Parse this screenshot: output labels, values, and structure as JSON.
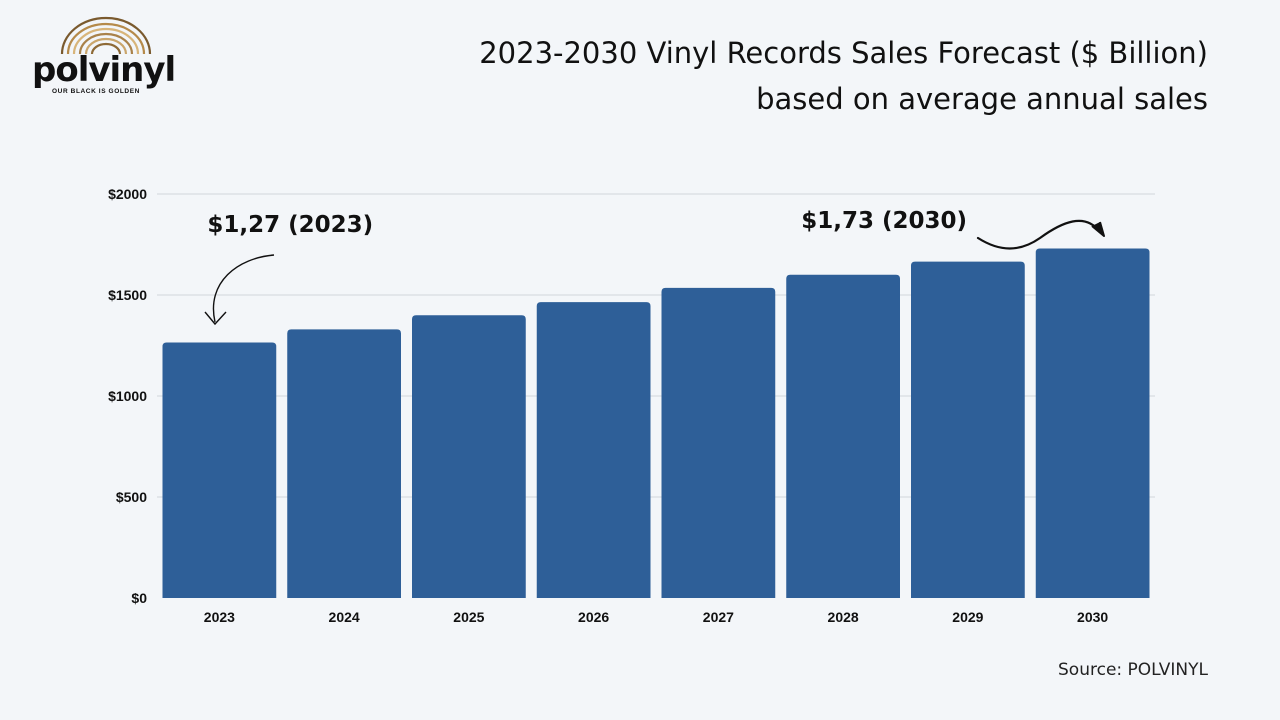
{
  "brand": {
    "name": "polvinyl",
    "tagline": "OUR BLACK IS GOLDEN"
  },
  "title_line1": "2023-2030 Vinyl Records Sales Forecast ($ Billion)",
  "title_line2": "based on average annual sales",
  "source": "Source: POLVINYL",
  "colors": {
    "bar": "#2e5f98",
    "grid": "#d2d6db",
    "logo_gold": "#b58a4a"
  },
  "chart_data": {
    "type": "bar",
    "categories": [
      "2023",
      "2024",
      "2025",
      "2026",
      "2027",
      "2028",
      "2029",
      "2030"
    ],
    "values": [
      1265,
      1330,
      1400,
      1465,
      1535,
      1600,
      1665,
      1730
    ],
    "yticks": [
      "$0",
      "$500",
      "$1000",
      "$1500",
      "$2000"
    ],
    "ylim": [
      0,
      2000
    ],
    "grid": true,
    "annotations": [
      {
        "text": "$1,27 (2023)",
        "category": "2023"
      },
      {
        "text": "$1,73 (2030)",
        "category": "2030"
      }
    ]
  }
}
